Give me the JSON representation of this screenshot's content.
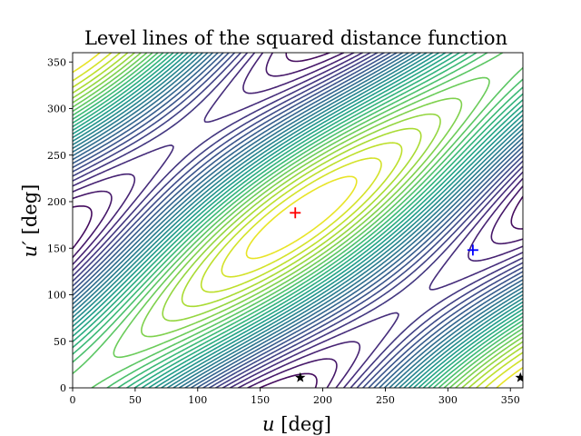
{
  "chart_data": {
    "type": "contour",
    "title": "Level lines of the squared distance function",
    "xlabel_var": "u",
    "xlabel_unit": "[deg]",
    "ylabel_var": "u′",
    "ylabel_unit": "[deg]",
    "xlim": [
      0,
      360
    ],
    "ylim": [
      0,
      360
    ],
    "xticks": [
      0,
      50,
      100,
      150,
      200,
      250,
      300,
      350
    ],
    "yticks": [
      0,
      50,
      100,
      150,
      200,
      250,
      300,
      350
    ],
    "grid": false,
    "colormap": "viridis",
    "contour_levels": 30,
    "markers": [
      {
        "name": "red-plus",
        "symbol": "+",
        "color": "#ff0000",
        "x": 178,
        "y": 188
      },
      {
        "name": "blue-plus",
        "symbol": "+",
        "color": "#0000ff",
        "x": 320,
        "y": 148
      },
      {
        "name": "black-star-1",
        "symbol": "★",
        "color": "#000000",
        "x": 182,
        "y": 11
      },
      {
        "name": "black-star-2",
        "symbol": "★",
        "color": "#000000",
        "x": 358,
        "y": 11
      }
    ]
  }
}
